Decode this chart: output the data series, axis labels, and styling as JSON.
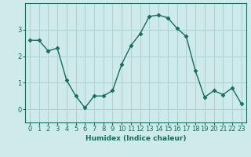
{
  "x": [
    0,
    1,
    2,
    3,
    4,
    5,
    6,
    7,
    8,
    9,
    10,
    11,
    12,
    13,
    14,
    15,
    16,
    17,
    18,
    19,
    20,
    21,
    22,
    23
  ],
  "y": [
    2.6,
    2.6,
    2.2,
    2.3,
    1.1,
    0.5,
    0.05,
    0.5,
    0.5,
    0.7,
    1.7,
    2.4,
    2.85,
    3.5,
    3.55,
    3.45,
    3.05,
    2.75,
    1.45,
    0.45,
    0.7,
    0.55,
    0.8,
    0.2
  ],
  "line_color": "#1a6b5a",
  "marker": "D",
  "marker_size": 2.5,
  "bg_color": "#ceeaea",
  "grid_color": "#b0d4d4",
  "xlabel": "Humidex (Indice chaleur)",
  "xlim": [
    -0.5,
    23.5
  ],
  "ylim": [
    -0.5,
    4.0
  ],
  "yticks": [
    0,
    1,
    2,
    3
  ],
  "xticks": [
    0,
    1,
    2,
    3,
    4,
    5,
    6,
    7,
    8,
    9,
    10,
    11,
    12,
    13,
    14,
    15,
    16,
    17,
    18,
    19,
    20,
    21,
    22,
    23
  ],
  "xlabel_fontsize": 6.5,
  "tick_fontsize": 6.0,
  "linewidth": 1.0
}
